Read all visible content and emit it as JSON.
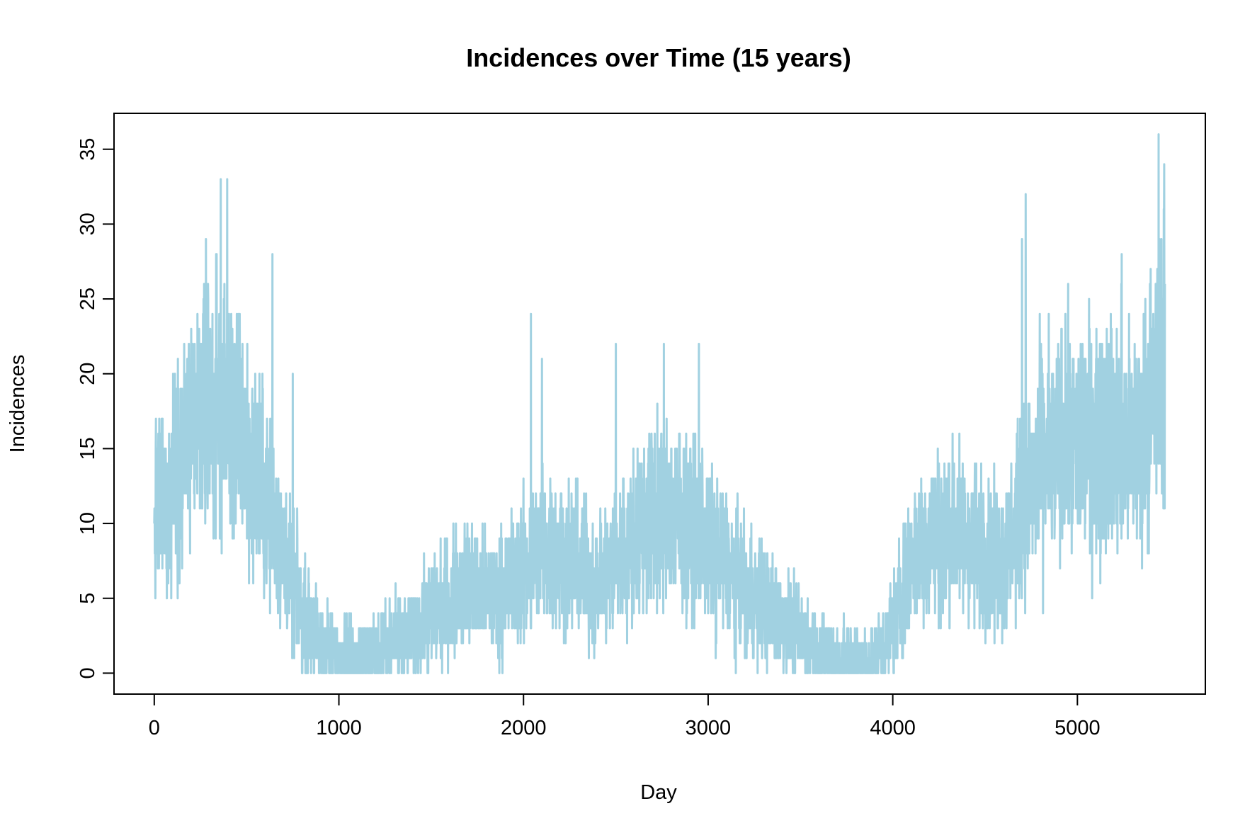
{
  "chart_data": {
    "type": "line",
    "title": "Incidences over Time (15 years)",
    "xlabel": "Day",
    "ylabel": "Incidences",
    "xlim": [
      -218,
      5693
    ],
    "ylim": [
      -1.4,
      37.4
    ],
    "x_ticks": [
      0,
      1000,
      2000,
      3000,
      4000,
      5000
    ],
    "y_ticks": [
      0,
      5,
      10,
      15,
      20,
      25,
      30,
      35
    ],
    "grid": false,
    "legend": "none",
    "series": [
      {
        "color": "#a1d1e1",
        "x_start": 0,
        "x_step": 1,
        "x_end": 5474,
        "trend_y": [
          [
            0,
            10
          ],
          [
            100,
            13
          ],
          [
            200,
            16
          ],
          [
            300,
            18
          ],
          [
            400,
            17
          ],
          [
            500,
            15
          ],
          [
            600,
            12
          ],
          [
            700,
            8
          ],
          [
            800,
            4
          ],
          [
            900,
            2
          ],
          [
            1000,
            1.2
          ],
          [
            1100,
            1
          ],
          [
            1200,
            1.5
          ],
          [
            1300,
            2
          ],
          [
            1400,
            2.5
          ],
          [
            1500,
            4
          ],
          [
            1600,
            5
          ],
          [
            1700,
            6
          ],
          [
            1800,
            5
          ],
          [
            1900,
            5.5
          ],
          [
            2000,
            7
          ],
          [
            2100,
            8.5
          ],
          [
            2200,
            8
          ],
          [
            2300,
            7
          ],
          [
            2400,
            6
          ],
          [
            2500,
            7.5
          ],
          [
            2600,
            9
          ],
          [
            2700,
            10.5
          ],
          [
            2800,
            11
          ],
          [
            2900,
            10
          ],
          [
            3000,
            8.5
          ],
          [
            3100,
            7
          ],
          [
            3200,
            5.5
          ],
          [
            3300,
            4.5
          ],
          [
            3400,
            3.5
          ],
          [
            3500,
            2.5
          ],
          [
            3600,
            1.5
          ],
          [
            3700,
            1
          ],
          [
            3800,
            0.8
          ],
          [
            3900,
            0.8
          ],
          [
            4000,
            3
          ],
          [
            4100,
            7.5
          ],
          [
            4200,
            9
          ],
          [
            4300,
            9.5
          ],
          [
            4400,
            9
          ],
          [
            4500,
            8
          ],
          [
            4600,
            7.5
          ],
          [
            4700,
            11
          ],
          [
            4800,
            14
          ],
          [
            4900,
            15
          ],
          [
            5000,
            15.5
          ],
          [
            5100,
            16
          ],
          [
            5200,
            16
          ],
          [
            5300,
            15
          ],
          [
            5400,
            18
          ],
          [
            5474,
            22
          ]
        ],
        "peaks": [
          [
            395,
            33
          ],
          [
            360,
            33
          ],
          [
            280,
            29
          ],
          [
            640,
            28
          ],
          [
            750,
            20
          ],
          [
            2040,
            24
          ],
          [
            2100,
            21
          ],
          [
            2500,
            22
          ],
          [
            2760,
            22
          ],
          [
            2950,
            22
          ],
          [
            4720,
            32
          ],
          [
            4700,
            29
          ],
          [
            5240,
            28
          ],
          [
            5440,
            36
          ],
          [
            5470,
            34
          ]
        ]
      }
    ]
  }
}
